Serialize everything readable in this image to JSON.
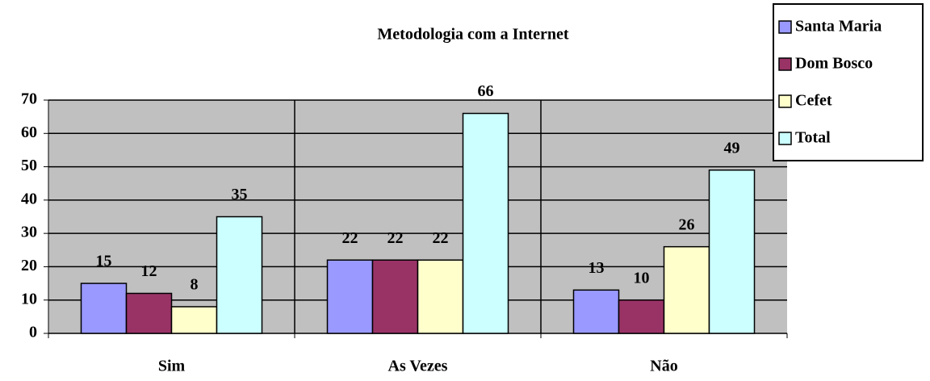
{
  "chart_data": {
    "type": "bar",
    "title": "Metodologia com a Internet",
    "categories": [
      "Sim",
      "As Vezes",
      "Não"
    ],
    "series": [
      {
        "name": "Santa Maria",
        "color": "#9999ff",
        "values": [
          15,
          22,
          13
        ]
      },
      {
        "name": "Dom Bosco",
        "color": "#993366",
        "values": [
          12,
          22,
          10
        ]
      },
      {
        "name": "Cefet",
        "color": "#ffffcc",
        "values": [
          8,
          22,
          26
        ]
      },
      {
        "name": "Total",
        "color": "#ccffff",
        "values": [
          35,
          66,
          49
        ]
      }
    ],
    "ylim": [
      0,
      70
    ],
    "yticks": [
      0,
      10,
      20,
      30,
      40,
      50,
      60,
      70
    ],
    "grid": true,
    "legend": "right"
  }
}
